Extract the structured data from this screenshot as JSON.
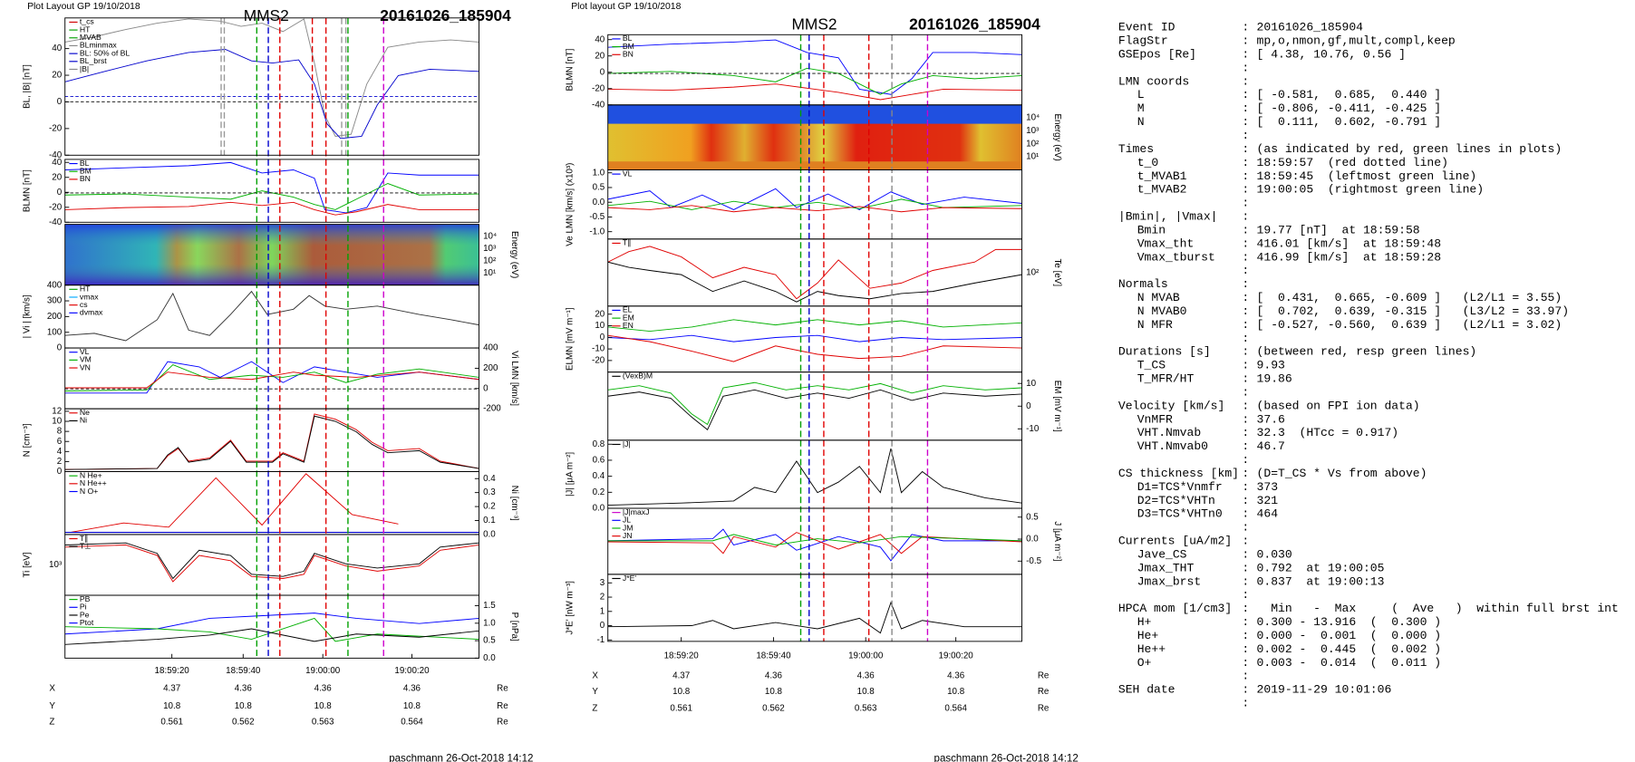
{
  "sep": ":",
  "left": {
    "header": "Plot Layout GP 19/10/2018",
    "title": "MMS2",
    "event": "20161026_185904",
    "footer": "paschmann 26-Oct-2018 14:12",
    "panels": [
      {
        "label": "BL, |B| [nT]",
        "side": "left",
        "ylim": [
          -40,
          63
        ],
        "ticks": [
          40,
          20,
          0,
          -20,
          -40
        ],
        "legend": [
          {
            "text": "t_cs",
            "color": "#d00000"
          },
          {
            "text": "HT",
            "color": "#00a000"
          },
          {
            "text": "MVAB",
            "color": "#00a000"
          },
          {
            "text": "BLminmax",
            "color": "#888888"
          },
          {
            "text": "BL: 50% of BL",
            "color": "#0000cc"
          },
          {
            "text": "BL_brst",
            "color": "#0000cc"
          },
          {
            "text": "|B|",
            "color": "#888888"
          }
        ]
      },
      {
        "label": "BLMN [nT]",
        "side": "left",
        "ylim": [
          -40,
          44
        ],
        "ticks": [
          40,
          20,
          0,
          -20,
          -40
        ],
        "legend": [
          {
            "text": "BL",
            "color": "#0000ff"
          },
          {
            "text": "BM",
            "color": "#00b000"
          },
          {
            "text": "BN",
            "color": "#e00000"
          }
        ]
      },
      {
        "label": "Energy (eV)",
        "side": "right",
        "ticks": [
          "10⁴",
          "10³",
          "10²",
          "10¹"
        ],
        "legend": []
      },
      {
        "label": "| Vi | [km/s]",
        "side": "left",
        "ylim": [
          0,
          400
        ],
        "ticks": [
          400,
          300,
          200,
          100,
          0
        ],
        "legend": [
          {
            "text": "HT",
            "color": "#00a000"
          },
          {
            "text": "vmax",
            "color": "#00aaff"
          },
          {
            "text": "cs",
            "color": "#e00000"
          },
          {
            "text": "dvmax",
            "color": "#0000ff"
          }
        ]
      },
      {
        "label": "Vi LMN [km/s]",
        "side": "right",
        "ylim": [
          -200,
          400
        ],
        "ticks": [
          400,
          200,
          0,
          -200
        ],
        "legend": [
          {
            "text": "VL",
            "color": "#0000ff"
          },
          {
            "text": "VM",
            "color": "#00b000"
          },
          {
            "text": "VN",
            "color": "#e00000"
          }
        ]
      },
      {
        "label": "N [cm⁻³]",
        "side": "left",
        "ylim": [
          0,
          12.5
        ],
        "ticks": [
          12,
          10,
          8,
          6,
          4,
          2,
          0
        ],
        "legend": [
          {
            "text": "Ne",
            "color": "#e00000"
          },
          {
            "text": "Ni",
            "color": "#000000"
          }
        ]
      },
      {
        "label": "Ni [cm⁻³]",
        "side": "right",
        "ylim": [
          0,
          0.45
        ],
        "ticks": [
          0.4,
          0.3,
          0.2,
          0.1,
          {
            "value": 0,
            "label": "0.0"
          }
        ],
        "legend": [
          {
            "text": "N He+",
            "color": "#00b000"
          },
          {
            "text": "N He++",
            "color": "#e00000"
          },
          {
            "text": "N O+",
            "color": "#0000ff"
          }
        ]
      },
      {
        "label": "Ti [eV]",
        "side": "left",
        "ticks": [
          "10³"
        ],
        "legend": [
          {
            "text": "T∥",
            "color": "#e00000"
          },
          {
            "text": "T⊥",
            "color": "#000000"
          }
        ]
      },
      {
        "label": "P [nPa]",
        "side": "right",
        "ylim": [
          0,
          1.8
        ],
        "ticks": [
          1.5,
          {
            "value": 1,
            "label": "1.0"
          },
          0.5,
          {
            "value": 0,
            "label": "0.0"
          }
        ],
        "legend": [
          {
            "text": "PB",
            "color": "#00b000"
          },
          {
            "text": "Pi",
            "color": "#0000ff"
          },
          {
            "text": "Pe",
            "color": "#000000"
          },
          {
            "text": "Ptot",
            "color": "#0000ff"
          }
        ]
      }
    ],
    "xticks": [
      "18:59:20",
      "18:59:40",
      "19:00:00",
      "19:00:20"
    ],
    "ephemeris": [
      {
        "name": "X",
        "values": [
          4.37,
          4.36,
          4.36,
          4.36
        ],
        "unit": "Re"
      },
      {
        "name": "Y",
        "values": [
          10.8,
          10.8,
          10.8,
          10.8
        ],
        "unit": "Re"
      },
      {
        "name": "Z",
        "values": [
          0.561,
          0.562,
          0.563,
          0.564
        ],
        "unit": "Re"
      }
    ]
  },
  "middle": {
    "header": "Plot layout GP 19/10/2018",
    "title": "MMS2",
    "event": "20161026_185904",
    "footer": "paschmann 26-Oct-2018 14:12",
    "panels": [
      {
        "label": "BLMN [nT]",
        "side": "left",
        "ylim": [
          -40,
          46
        ],
        "ticks": [
          40,
          20,
          0,
          -20,
          -40
        ],
        "legend": [
          {
            "text": "BL",
            "color": "#0000ff"
          },
          {
            "text": "BM",
            "color": "#00b000"
          },
          {
            "text": "BN",
            "color": "#e00000"
          }
        ]
      },
      {
        "label": "Energy (eV)",
        "side": "right",
        "ticks": [
          "10⁴",
          "10³",
          "10²",
          "10¹"
        ],
        "legend": []
      },
      {
        "label": "Ve LMN [km/s] (x10³)",
        "side": "left",
        "ylim": [
          -1.25,
          1.1
        ],
        "ticks": [
          {
            "value": 1,
            "label": "1.0"
          },
          0.5,
          {
            "value": 0,
            "label": "0.0"
          },
          -0.5,
          {
            "value": -1,
            "label": "-1.0"
          }
        ],
        "legend": [
          {
            "text": "VL",
            "color": "#0000ff"
          }
        ]
      },
      {
        "label": "Te [eV]",
        "side": "right",
        "ticks": [
          "10²"
        ],
        "legend": [
          {
            "text": "T∥",
            "color": "#e00000"
          }
        ]
      },
      {
        "label": "ELMN [mV m⁻¹]",
        "side": "left",
        "ylim": [
          -30,
          27
        ],
        "ticks": [
          20,
          10,
          0,
          -10,
          -20
        ],
        "legend": [
          {
            "text": "EL",
            "color": "#0000ff"
          },
          {
            "text": "EM",
            "color": "#00b000"
          },
          {
            "text": "EN",
            "color": "#e00000"
          }
        ]
      },
      {
        "label": "EM [mV m⁻¹]",
        "side": "right",
        "ylim": [
          -15,
          15
        ],
        "ticks": [
          10,
          0,
          -10
        ],
        "legend": [
          {
            "text": "(VexB)M",
            "color": "#000000"
          }
        ]
      },
      {
        "label": "|J| [μA m⁻²]",
        "side": "left",
        "ylim": [
          0,
          0.85
        ],
        "ticks": [
          0.8,
          0.6,
          0.4,
          0.2,
          {
            "value": 0,
            "label": "0.0"
          }
        ],
        "legend": [
          {
            "text": "|J|",
            "color": "#000000"
          }
        ]
      },
      {
        "label": "J [μA m⁻²]",
        "side": "right",
        "ylim": [
          -0.8,
          0.7
        ],
        "ticks": [
          0.5,
          {
            "value": 0,
            "label": "0.0"
          },
          -0.5
        ],
        "legend": [
          {
            "text": "|J|maxJ",
            "color": "#cc00cc"
          },
          {
            "text": "JL",
            "color": "#0000ff"
          },
          {
            "text": "JM",
            "color": "#00b000"
          },
          {
            "text": "JN",
            "color": "#e00000"
          }
        ]
      },
      {
        "label": "J*E' [nW m⁻³]",
        "side": "left",
        "ylim": [
          -1.1,
          3.6
        ],
        "ticks": [
          3,
          2,
          1,
          0,
          -1
        ],
        "legend": [
          {
            "text": "J*E'",
            "color": "#000000"
          }
        ]
      }
    ],
    "xticks": [
      "18:59:20",
      "18:59:40",
      "19:00:00",
      "19:00:20"
    ],
    "ephemeris": [
      {
        "name": "X",
        "values": [
          4.37,
          4.36,
          4.36,
          4.36
        ],
        "unit": "Re"
      },
      {
        "name": "Y",
        "values": [
          10.8,
          10.8,
          10.8,
          10.8
        ],
        "unit": "Re"
      },
      {
        "name": "Z",
        "values": [
          0.561,
          0.562,
          0.563,
          0.564
        ],
        "unit": "Re"
      }
    ]
  },
  "info": [
    {
      "rows": [
        [
          "Event ID",
          "20161026_185904"
        ],
        [
          "FlagStr",
          "mp,o,nmon,gf,mult,compl,keep"
        ],
        [
          "GSEpos [Re]",
          "[ 4.38, 10.76, 0.56 ]"
        ]
      ]
    },
    {
      "head": [
        "LMN coords"
      ],
      "rows": [
        [
          "L",
          "[ -0.581,  0.685,  0.440 ]"
        ],
        [
          "M",
          "[ -0.806, -0.411, -0.425 ]"
        ],
        [
          "N",
          "[  0.111,  0.602, -0.791 ]"
        ]
      ]
    },
    {
      "head": [
        "Times",
        "(as indicated by red, green lines in plots)"
      ],
      "rows": [
        [
          "t_0",
          "18:59:57  (red dotted line)"
        ],
        [
          "t_MVAB1",
          "18:59:45  (leftmost green line)"
        ],
        [
          "t_MVAB2",
          "19:00:05  (rightmost green line)"
        ]
      ]
    },
    {
      "head": [
        "|Bmin|, |Vmax|"
      ],
      "rows": [
        [
          "Bmin",
          "19.77 [nT]  at 18:59:58"
        ],
        [
          "Vmax_tht",
          "416.01 [km/s]  at 18:59:48"
        ],
        [
          "Vmax_tburst",
          "416.99 [km/s]  at 18:59:28"
        ]
      ]
    },
    {
      "head": [
        "Normals"
      ],
      "rows": [
        [
          "N MVAB",
          "[  0.431,  0.665, -0.609 ]   (L2/L1 = 3.55)"
        ],
        [
          "N MVAB0",
          "[  0.702,  0.639, -0.315 ]   (L3/L2 = 33.97)"
        ],
        [
          "N MFR",
          "[ -0.527, -0.560,  0.639 ]   (L2/L1 = 3.02)"
        ]
      ]
    },
    {
      "head": [
        "Durations [s]",
        "(between red, resp green lines)"
      ],
      "rows": [
        [
          "T_CS",
          "9.93"
        ],
        [
          "T_MFR/HT",
          "19.86"
        ]
      ]
    },
    {
      "head": [
        "Velocity [km/s]",
        "(based on FPI ion data)"
      ],
      "rows": [
        [
          "VnMFR",
          "37.6"
        ],
        [
          "VHT.Nmvab",
          "32.3  (HTcc = 0.917)"
        ],
        [
          "VHT.Nmvab0",
          "46.7"
        ]
      ]
    },
    {
      "head": [
        "CS thickness [km]",
        "(D=T_CS * Vs from above)"
      ],
      "rows": [
        [
          "D1=TCS*Vnmfr",
          "373"
        ],
        [
          "D2=TCS*VHTn",
          "321"
        ],
        [
          "D3=TCS*VHTn0",
          "464"
        ]
      ]
    },
    {
      "head": [
        "Currents [uA/m2]"
      ],
      "rows": [
        [
          "Jave_CS",
          "0.030"
        ],
        [
          "Jmax_THT",
          "0.792  at 19:00:05"
        ],
        [
          "Jmax_brst",
          "0.837  at 19:00:13"
        ]
      ]
    },
    {
      "head": [
        "HPCA mom [1/cm3]",
        "  Min   -  Max     (  Ave   )  within full brst int"
      ],
      "rows": [
        [
          "H+",
          "0.300 - 13.916  (  0.300 )"
        ],
        [
          "He+",
          "0.000 -  0.001  (  0.000 )"
        ],
        [
          "He++",
          "0.002 -  0.445  (  0.002 )"
        ],
        [
          "O+",
          "0.003 -  0.014  (  0.011 )"
        ]
      ]
    },
    {
      "rows": [
        [
          "SEH date",
          "2019-11-29 10:01:06"
        ]
      ]
    }
  ]
}
